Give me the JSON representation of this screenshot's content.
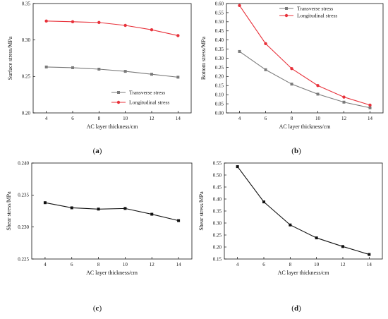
{
  "chart_data": [
    {
      "panel_label": "(a)",
      "type": "line",
      "xlabel": "AC layer thickness/cm",
      "ylabel": "Surface stress/MPa",
      "x": [
        4,
        6,
        8,
        10,
        12,
        14
      ],
      "xlim": [
        3,
        15
      ],
      "ylim": [
        0.2,
        0.35
      ],
      "xticks": [
        "4",
        "6",
        "8",
        "10",
        "12",
        "14"
      ],
      "yticks": [
        "0.20",
        "0.25",
        "0.30",
        "0.35"
      ],
      "grid": false,
      "legend_position": "center-right",
      "series": [
        {
          "name": "Transverse stress",
          "color": "#7a7a7a",
          "marker": "square",
          "values": [
            0.263,
            0.262,
            0.26,
            0.257,
            0.253,
            0.249
          ]
        },
        {
          "name": "Longitudinal stress",
          "color": "#e8313a",
          "marker": "circle",
          "values": [
            0.326,
            0.325,
            0.324,
            0.32,
            0.314,
            0.306
          ]
        }
      ]
    },
    {
      "panel_label": "(b)",
      "type": "line",
      "xlabel": "AC layer thickness/cm",
      "ylabel": "Bottom stress/MPa",
      "x": [
        4,
        6,
        8,
        10,
        12,
        14
      ],
      "xlim": [
        3,
        15
      ],
      "ylim": [
        0.0,
        0.6
      ],
      "xticks": [
        "4",
        "6",
        "8",
        "10",
        "12",
        "14"
      ],
      "yticks": [
        "0.00",
        "0.05",
        "0.10",
        "0.15",
        "0.20",
        "0.25",
        "0.30",
        "0.35",
        "0.40",
        "0.45",
        "0.50",
        "0.55",
        "0.60"
      ],
      "grid": false,
      "legend_position": "top-right",
      "series": [
        {
          "name": "Transverse stress",
          "color": "#7a7a7a",
          "marker": "square",
          "values": [
            0.337,
            0.237,
            0.158,
            0.103,
            0.059,
            0.028
          ]
        },
        {
          "name": "Longitudinal stress",
          "color": "#e8313a",
          "marker": "circle",
          "values": [
            0.589,
            0.38,
            0.243,
            0.15,
            0.087,
            0.043
          ]
        }
      ]
    },
    {
      "panel_label": "(c)",
      "type": "line",
      "xlabel": "AC layer thickness/cm",
      "ylabel": "Shear stress/MPa",
      "x": [
        4,
        6,
        8,
        10,
        12,
        14
      ],
      "xlim": [
        3,
        15
      ],
      "ylim": [
        0.225,
        0.24
      ],
      "xticks": [
        "4",
        "6",
        "8",
        "10",
        "12",
        "14"
      ],
      "yticks": [
        "0.225",
        "0.230",
        "0.235",
        "0.240"
      ],
      "grid": false,
      "legend_position": "none",
      "series": [
        {
          "color": "#111111",
          "marker": "square",
          "values": [
            0.2338,
            0.233,
            0.2328,
            0.2329,
            0.232,
            0.231
          ]
        }
      ]
    },
    {
      "panel_label": "(d)",
      "type": "line",
      "xlabel": "AC layer thickness/cm",
      "ylabel": "Shear stress/MPa",
      "x": [
        4,
        6,
        8,
        10,
        12,
        14
      ],
      "xlim": [
        3,
        15
      ],
      "ylim": [
        0.15,
        0.55
      ],
      "xticks": [
        "4",
        "6",
        "8",
        "10",
        "12",
        "14"
      ],
      "yticks": [
        "0.15",
        "0.20",
        "0.25",
        "0.30",
        "0.35",
        "0.40",
        "0.45",
        "0.50",
        "0.55"
      ],
      "grid": false,
      "legend_position": "none",
      "series": [
        {
          "color": "#111111",
          "marker": "square",
          "values": [
            0.535,
            0.388,
            0.292,
            0.238,
            0.202,
            0.169
          ]
        }
      ]
    }
  ]
}
